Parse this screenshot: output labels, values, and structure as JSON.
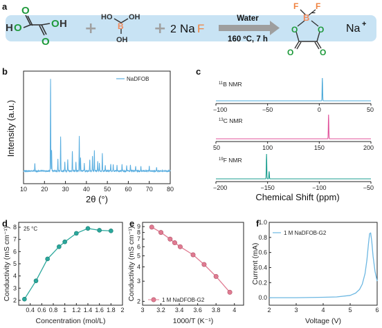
{
  "panel_labels": {
    "a": "a",
    "b": "b",
    "c": "c",
    "d": "d",
    "e": "e",
    "f": "f"
  },
  "scheme": {
    "plus1": "+",
    "plus2": "+",
    "naf_coef": "2",
    "naf_na": "Na",
    "naf_f": "F",
    "arrow_top": "Water",
    "arrow_bottom": "160 ºC, 7 h",
    "product_counterion": "Na",
    "product_charge": "+",
    "oxalic": {
      "h1": "H",
      "h2": "H",
      "o1": "O",
      "o2": "O",
      "o3": "O",
      "o4": "O"
    },
    "boric": {
      "ho1": "HO",
      "oh1": "OH",
      "oh2": "OH",
      "b": "B"
    },
    "dfob": {
      "f1": "F",
      "f2": "F",
      "b": "B",
      "o1": "O",
      "o2": "O",
      "o3": "O",
      "o4": "O",
      "charge": "−"
    },
    "colors": {
      "banner": "#c8e3f4",
      "carbon_o": "#1f9a3c",
      "oxygen": "#d4263a",
      "boron": "#f08a5d",
      "fluorine": "#f0823f",
      "arrow": "#9e9e9e"
    }
  },
  "chart_data": [
    {
      "id": "b",
      "type": "line",
      "title": "",
      "xlabel": "2θ (°)",
      "ylabel": "Intensity (a.u.)",
      "xlim": [
        10,
        80
      ],
      "xticks": [
        10,
        20,
        30,
        40,
        50,
        60,
        70,
        80
      ],
      "legend": {
        "entries": [
          "NaDFOB"
        ],
        "placement": "top-right"
      },
      "color": "#5aaee0",
      "baseline_peaks": [
        [
          15.4,
          0.08
        ],
        [
          22.9,
          1.0
        ],
        [
          23.4,
          0.22
        ],
        [
          26.4,
          0.13
        ],
        [
          27.7,
          0.37
        ],
        [
          29.7,
          0.1
        ],
        [
          31.1,
          0.12
        ],
        [
          33.3,
          0.22
        ],
        [
          35.0,
          0.1
        ],
        [
          36.6,
          0.38
        ],
        [
          37.2,
          0.15
        ],
        [
          39.0,
          0.08
        ],
        [
          41.6,
          0.12
        ],
        [
          42.9,
          0.16
        ],
        [
          43.8,
          0.22
        ],
        [
          45.4,
          0.1
        ],
        [
          46.2,
          0.09
        ],
        [
          47.6,
          0.19
        ],
        [
          49.0,
          0.06
        ],
        [
          51.6,
          0.08
        ],
        [
          52.8,
          0.07
        ],
        [
          54.6,
          0.06
        ],
        [
          57.0,
          0.07
        ],
        [
          59.2,
          0.06
        ],
        [
          61.0,
          0.07
        ],
        [
          63.5,
          0.05
        ],
        [
          66.0,
          0.05
        ],
        [
          70.0,
          0.05
        ],
        [
          73.5,
          0.04
        ]
      ]
    },
    {
      "id": "c",
      "type": "line",
      "xlabel": "Chemical Shift (ppm)",
      "subplots": [
        {
          "label": "¹¹B NMR",
          "sup": "11",
          "nuc": "B NMR",
          "xlim": [
            -100,
            50
          ],
          "xticks": [
            -100,
            -50,
            0,
            50
          ],
          "tick_labels": [
            "−100",
            "−50",
            "0",
            "50"
          ],
          "color": "#4aa8d8",
          "peaks": [
            [
              3.0,
              1.0
            ]
          ]
        },
        {
          "label": "¹³C NMR",
          "sup": "13",
          "nuc": "C NMR",
          "xlim": [
            50,
            200
          ],
          "xticks": [
            50,
            100,
            150,
            200
          ],
          "tick_labels": [
            "50",
            "100",
            "150",
            "200"
          ],
          "color": "#e0509a",
          "peaks": [
            [
              159.0,
              1.0
            ]
          ]
        },
        {
          "label": "¹⁹F NMR",
          "sup": "19",
          "nuc": "F NMR",
          "xlim": [
            -200,
            -50
          ],
          "xticks": [
            -200,
            -150,
            -100,
            -50
          ],
          "tick_labels": [
            "−200",
            "−150",
            "−100",
            "−50"
          ],
          "color": "#1a9e8f",
          "peaks": [
            [
              -151.0,
              1.0
            ],
            [
              -148.5,
              0.3
            ]
          ]
        }
      ]
    },
    {
      "id": "d",
      "type": "line",
      "xlabel": "Concentration (mol/L)",
      "ylabel": "Conductivity (mS cm⁻¹)",
      "xlim": [
        0.2,
        2.0
      ],
      "ylim": [
        1.6,
        8.4
      ],
      "xticks": [
        0.4,
        0.6,
        0.8,
        1.0,
        1.2,
        1.4,
        1.6,
        1.8,
        2.0
      ],
      "yticks": [
        2,
        3,
        4,
        5,
        6,
        7,
        8
      ],
      "annotation": "25 °C",
      "color": "#2aa79b",
      "x": [
        0.3,
        0.5,
        0.7,
        0.9,
        1.0,
        1.2,
        1.4,
        1.6,
        1.8
      ],
      "y": [
        2.1,
        3.6,
        5.4,
        6.4,
        6.8,
        7.5,
        7.9,
        7.75,
        7.7
      ]
    },
    {
      "id": "e",
      "type": "line",
      "xlabel": "1000/T (K⁻¹)",
      "ylabel": "Conductivity (mS cm⁻¹)",
      "log_y": true,
      "xlim": [
        3.0,
        4.1
      ],
      "ylim": [
        1.85,
        9.8
      ],
      "xticks": [
        3.0,
        3.2,
        3.4,
        3.6,
        3.8,
        4.0
      ],
      "yticks": [
        2,
        3,
        4,
        5,
        6,
        7,
        8,
        9
      ],
      "legend": {
        "entries": [
          "1 M NaDFOB-G2"
        ],
        "placement": "bottom-left"
      },
      "color": "#e07b92",
      "x": [
        3.1,
        3.2,
        3.3,
        3.35,
        3.41,
        3.55,
        3.67,
        3.8,
        3.95
      ],
      "y": [
        8.9,
        8.0,
        7.0,
        6.5,
        6.0,
        5.1,
        4.2,
        3.3,
        2.4
      ]
    },
    {
      "id": "f",
      "type": "line",
      "xlabel": "Voltage (V)",
      "ylabel": "Current (mA)",
      "xlim": [
        2,
        6
      ],
      "ylim": [
        -0.1,
        1.0
      ],
      "xticks": [
        2,
        3,
        4,
        5,
        6
      ],
      "yticks": [
        0.0,
        0.2,
        0.4,
        0.6,
        0.8,
        1.0
      ],
      "tick_labels_y": [
        "0.0",
        "0.2",
        "0.4",
        "0.6",
        "0.8",
        "1.0"
      ],
      "legend": {
        "entries": [
          "1 M NaDFOB-G2"
        ],
        "placement": "top-left"
      },
      "color": "#6cb7e2",
      "x": [
        2.0,
        3.0,
        4.0,
        4.5,
        5.0,
        5.2,
        5.35,
        5.45,
        5.55,
        5.62,
        5.68,
        5.72,
        5.76,
        5.8,
        5.85,
        5.92,
        6.0
      ],
      "y": [
        0.0,
        0.0,
        0.005,
        0.01,
        0.03,
        0.06,
        0.11,
        0.18,
        0.32,
        0.5,
        0.72,
        0.85,
        0.86,
        0.75,
        0.55,
        0.35,
        0.22
      ]
    }
  ]
}
